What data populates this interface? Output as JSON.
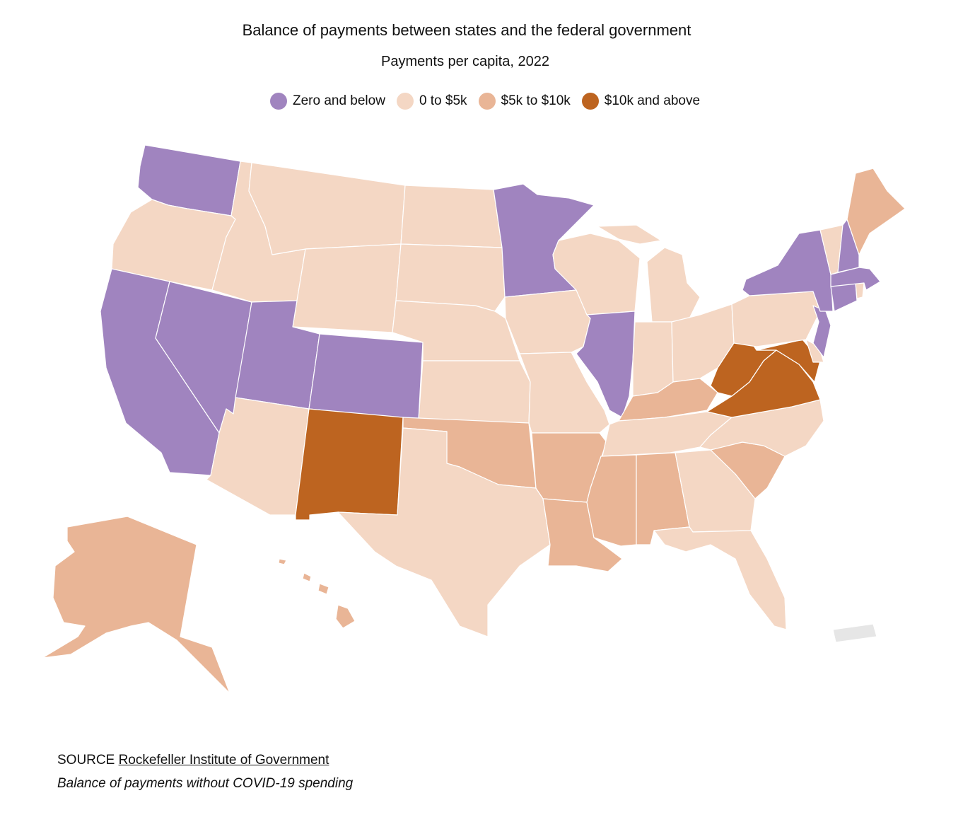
{
  "header": {
    "title": "Balance of payments between states and the federal government",
    "subtitle": "Payments per capita, 2022"
  },
  "colors": {
    "zero_and_below": "#a084bf",
    "zero_to_5k": "#f4d7c4",
    "five_to_10k": "#e9b596",
    "ten_k_and_above": "#bd6420",
    "no_data": "#e6e6e6"
  },
  "legend": [
    {
      "label": "Zero and below",
      "color": "#a084bf"
    },
    {
      "label": "0 to $5k",
      "color": "#f4d7c4"
    },
    {
      "label": "$5k to $10k",
      "color": "#e9b596"
    },
    {
      "label": "$10k and above",
      "color": "#bd6420"
    }
  ],
  "map_data": {
    "zero_and_below": [
      "WA",
      "CA",
      "NV",
      "UT",
      "CO",
      "MN",
      "IL",
      "NY",
      "NH",
      "MA",
      "CT",
      "NJ"
    ],
    "zero_to_5k": [
      "OR",
      "ID",
      "MT",
      "WY",
      "ND",
      "SD",
      "NE",
      "KS",
      "AZ",
      "TX",
      "IA",
      "MO",
      "WI",
      "MI",
      "IN",
      "OH",
      "TN",
      "NC",
      "GA",
      "FL",
      "PA",
      "VT",
      "RI",
      "DE"
    ],
    "five_to_10k": [
      "AK",
      "HI",
      "OK",
      "AR",
      "LA",
      "MS",
      "AL",
      "SC",
      "KY",
      "ME"
    ],
    "ten_k_and_above": [
      "NM",
      "WV",
      "VA",
      "MD"
    ],
    "no_data": [
      "PR"
    ]
  },
  "footer": {
    "source_prefix": "SOURCE",
    "source_link": "Rockefeller Institute of Government",
    "note": "Balance of payments without COVID-19 spending"
  }
}
